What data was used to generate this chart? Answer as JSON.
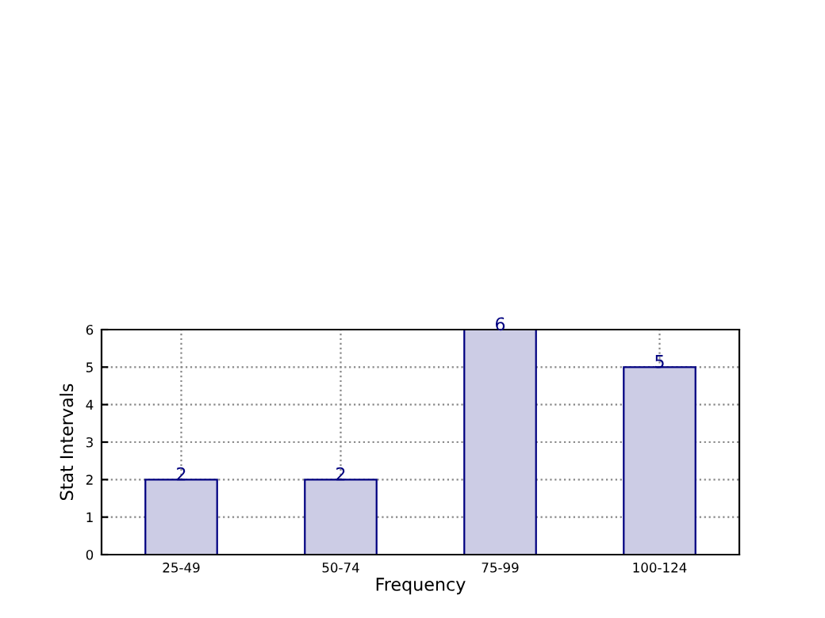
{
  "chart_data": {
    "type": "bar",
    "xlabel": "Frequency",
    "ylabel": "Stat Intervals",
    "categories": [
      "25-49",
      "50-74",
      "75-99",
      "100-124"
    ],
    "values": [
      2,
      2,
      6,
      5
    ],
    "color": "#cccce5",
    "ylim": [
      0,
      6
    ],
    "yticks": [
      0,
      1,
      2,
      3,
      4,
      5,
      6
    ],
    "grid": true,
    "data_labels": true
  }
}
